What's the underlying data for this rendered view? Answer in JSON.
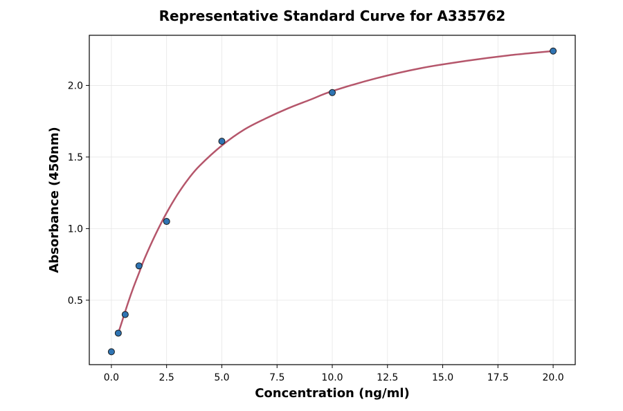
{
  "chart_data": {
    "type": "scatter",
    "title": "Representative Standard Curve for A335762",
    "xlabel": "Concentration (ng/ml)",
    "ylabel": "Absorbance (450nm)",
    "xlim": [
      -1.0,
      21.0
    ],
    "ylim": [
      0.05,
      2.35
    ],
    "x_ticks": [
      0.0,
      2.5,
      5.0,
      7.5,
      10.0,
      12.5,
      15.0,
      17.5,
      20.0
    ],
    "x_tick_labels": [
      "0.0",
      "2.5",
      "5.0",
      "7.5",
      "10.0",
      "12.5",
      "15.0",
      "17.5",
      "20.0"
    ],
    "y_ticks": [
      0.5,
      1.0,
      1.5,
      2.0
    ],
    "y_tick_labels": [
      "0.5",
      "1.0",
      "1.5",
      "2.0"
    ],
    "grid": true,
    "series": [
      {
        "kind": "points",
        "x": [
          0.0,
          0.312,
          0.625,
          1.25,
          2.5,
          5.0,
          10.0,
          20.0
        ],
        "y": [
          0.14,
          0.27,
          0.4,
          0.74,
          1.05,
          1.61,
          1.95,
          2.24
        ],
        "color": "#2f74b3"
      },
      {
        "kind": "fit-curve",
        "x": [
          0.312,
          0.5,
          0.75,
          1.0,
          1.25,
          1.5,
          2.0,
          2.5,
          3.0,
          3.5,
          4.0,
          5.0,
          6.0,
          7.0,
          8.0,
          9.0,
          10.0,
          12.0,
          14.0,
          16.0,
          18.0,
          20.0
        ],
        "y": [
          0.27,
          0.36,
          0.48,
          0.59,
          0.69,
          0.79,
          0.96,
          1.11,
          1.24,
          1.35,
          1.44,
          1.58,
          1.69,
          1.77,
          1.84,
          1.9,
          1.96,
          2.05,
          2.12,
          2.17,
          2.21,
          2.24
        ],
        "color": "#b5566b"
      }
    ]
  }
}
